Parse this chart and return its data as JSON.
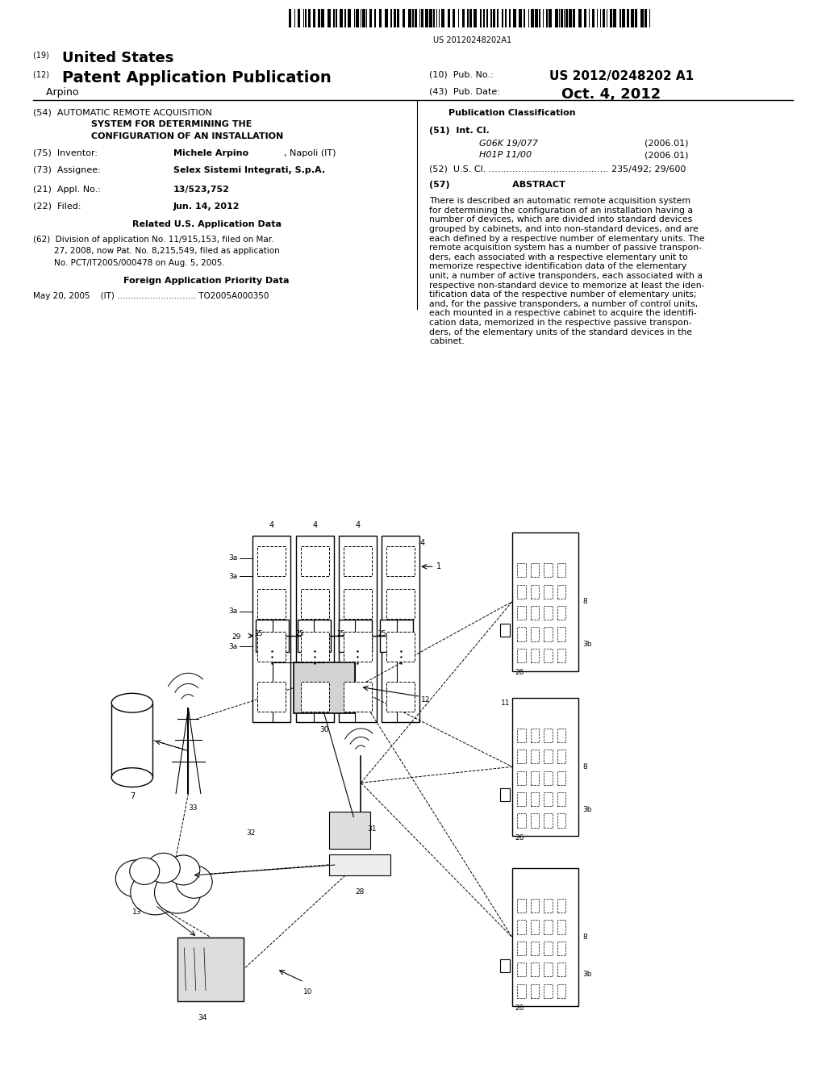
{
  "bg_color": "#ffffff",
  "barcode_text": "US 20120248202A1",
  "pub_no_value": "US 2012/0248202 A1",
  "pub_date_value": "Oct. 4, 2012",
  "abstract_text": "There is described an automatic remote acquisition system\nfor determining the configuration of an installation having a\nnumber of devices, which are divided into standard devices\ngrouped by cabinets, and into non-standard devices, and are\neach defined by a respective number of elementary units. The\nremote acquisition system has a number of passive transpon-\nders, each associated with a respective elementary unit to\nmemorize respective identification data of the elementary\nunit; a number of active transponders, each associated with a\nrespective non-standard device to memorize at least the iden-\ntification data of the respective number of elementary units;\nand, for the passive transponders, a number of control units,\neach mounted in a respective cabinet to acquire the identifi-\ncation data, memorized in the respective passive transpon-\nders, of the elementary units of the standard devices in the\ncabinet."
}
